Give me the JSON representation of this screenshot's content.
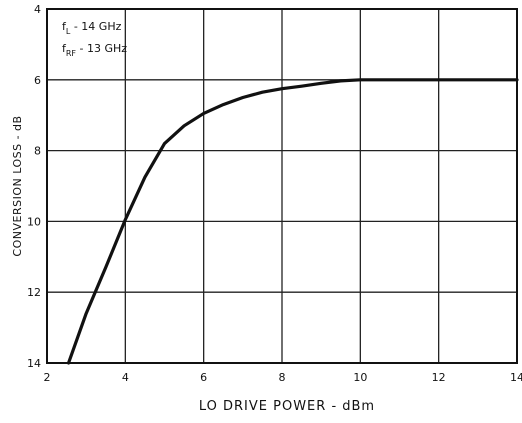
{
  "chart_data": {
    "type": "line",
    "title": "",
    "xlabel": "LO DRIVE POWER - dBm",
    "ylabel": "CONVERSION LOSS - dB",
    "xlim": [
      2,
      14
    ],
    "ylim": [
      4,
      14
    ],
    "y_inverted": true,
    "grid": true,
    "xticks": [
      "2",
      "4",
      "6",
      "8",
      "10",
      "12",
      "14"
    ],
    "yticks": [
      "4",
      "6",
      "8",
      "10",
      "12",
      "14"
    ],
    "annotations": [
      {
        "main": "f",
        "sub": "L",
        "rest": " - 14 GHz"
      },
      {
        "main": "f",
        "sub": "RF",
        "rest": " - 13 GHz"
      }
    ],
    "series": [
      {
        "x": [
          2.55,
          3.0,
          3.5,
          4.0,
          4.5,
          5.0,
          5.5,
          6.0,
          6.5,
          7.0,
          7.5,
          8.0,
          8.5,
          9.0,
          9.5,
          10.0,
          11.0,
          12.0,
          13.0,
          14.0
        ],
        "y": [
          14.0,
          12.6,
          11.3,
          9.95,
          8.75,
          7.8,
          7.3,
          6.95,
          6.7,
          6.5,
          6.35,
          6.25,
          6.18,
          6.1,
          6.03,
          6.0,
          6.0,
          6.0,
          6.0,
          6.0
        ]
      }
    ]
  }
}
